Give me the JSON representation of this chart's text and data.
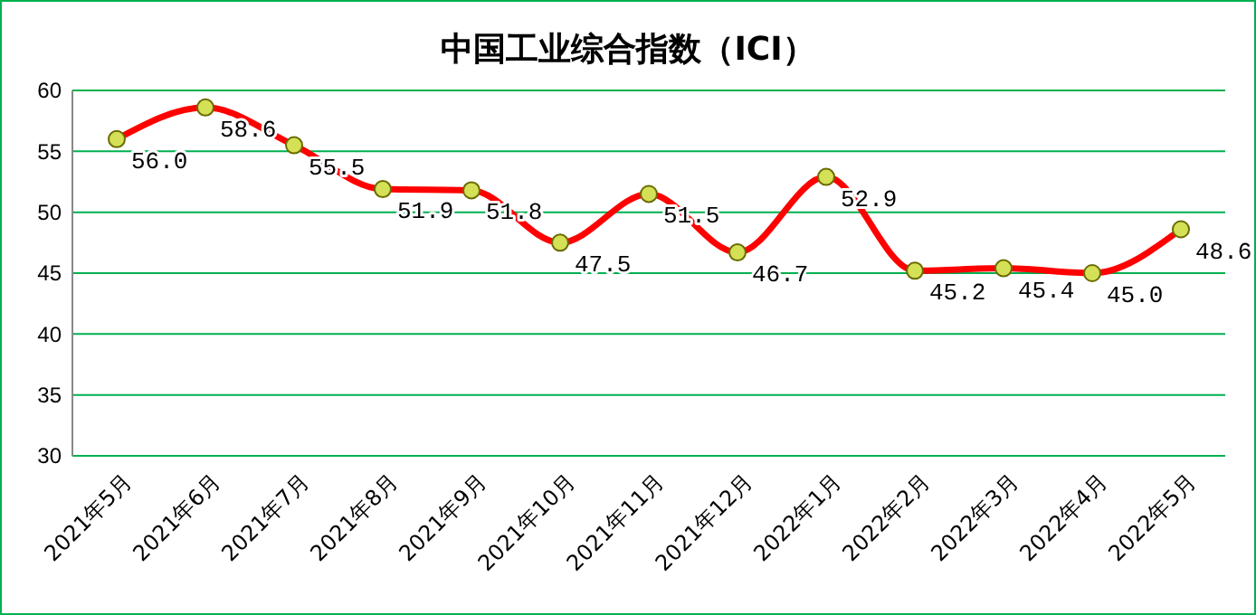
{
  "chart_data": {
    "type": "line",
    "title": "中国工业综合指数（ICI）",
    "categories": [
      "2021年5月",
      "2021年6月",
      "2021年7月",
      "2021年8月",
      "2021年9月",
      "2021年10月",
      "2021年11月",
      "2021年12月",
      "2022年1月",
      "2022年2月",
      "2022年3月",
      "2022年4月",
      "2022年5月"
    ],
    "series": [
      {
        "color": "#ff0000",
        "values": [
          56.0,
          58.6,
          55.5,
          51.9,
          51.8,
          47.5,
          51.5,
          46.7,
          52.9,
          45.2,
          45.4,
          45.0,
          48.6
        ],
        "value_labels": [
          "56.0",
          "58.6",
          "55.5",
          "51.9",
          "51.8",
          "47.5",
          "51.5",
          "46.7",
          "52.9",
          "45.2",
          "45.4",
          "45.0",
          "48.6"
        ]
      }
    ],
    "ylim": [
      30,
      60
    ],
    "yticks": [
      30,
      35,
      40,
      45,
      50,
      55,
      60
    ],
    "grid": "y",
    "marker": "circle",
    "line_style": "solid"
  }
}
